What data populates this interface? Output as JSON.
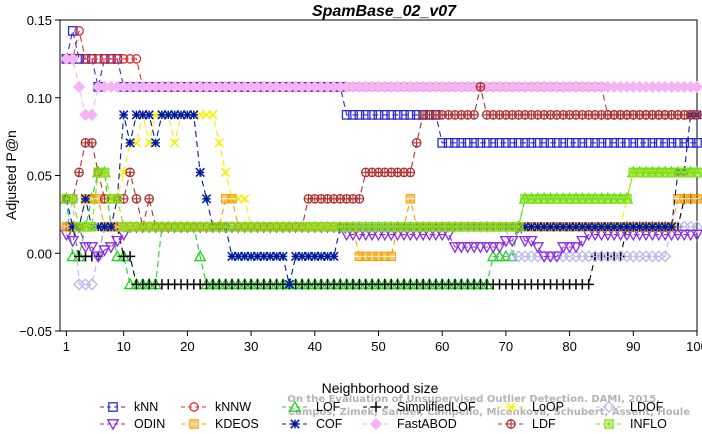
{
  "chart_data": {
    "type": "line",
    "title": "SpamBase_02_v07",
    "xlabel": "Neighborhood size",
    "ylabel": "Adjusted P@n",
    "xlim": [
      0,
      100
    ],
    "ylim": [
      -0.05,
      0.15
    ],
    "x_ticks": [
      "1",
      "10",
      "20",
      "30",
      "40",
      "50",
      "60",
      "70",
      "80",
      "90",
      "100"
    ],
    "y_ticks": [
      "−0.05",
      "0.00",
      "0.05",
      "0.10",
      "0.15"
    ],
    "grid": false,
    "legend_position": "bottom",
    "watermark": [
      "Campos, Zimek, Sander, Campello, Micenkova, Schubert, Assent, Houle",
      "On the Evaluation of Unsupervised Outlier Detection. DAMI, 2015."
    ],
    "series": [
      {
        "name": "kNN",
        "color": "#2b2bd4",
        "marker": "square",
        "dash": "6,4",
        "points": [
          [
            1,
            0.125
          ],
          [
            2,
            0.143
          ],
          [
            3,
            0.125
          ],
          [
            5,
            0.125
          ],
          [
            6,
            0.107
          ],
          [
            7,
            0.125
          ],
          [
            9,
            0.125
          ],
          [
            10,
            0.107
          ],
          [
            44,
            0.107
          ],
          [
            45,
            0.089
          ],
          [
            59,
            0.089
          ],
          [
            60,
            0.071
          ],
          [
            100,
            0.071
          ]
        ]
      },
      {
        "name": "kNNW",
        "color": "#e23030",
        "marker": "circle",
        "dash": "6,4",
        "points": [
          [
            1,
            0.125
          ],
          [
            2,
            0.125
          ],
          [
            3,
            0.143
          ],
          [
            4,
            0.125
          ],
          [
            11,
            0.125
          ],
          [
            12,
            0.125
          ],
          [
            13,
            0.107
          ],
          [
            85,
            0.107
          ],
          [
            86,
            0.089
          ],
          [
            100,
            0.089
          ]
        ]
      },
      {
        "name": "LOF",
        "color": "#1fd41f",
        "marker": "triangle",
        "dash": "6,4",
        "points": [
          [
            1,
            0.035
          ],
          [
            2,
            -0.002
          ],
          [
            3,
            -0.002
          ],
          [
            4,
            0.017
          ],
          [
            5,
            0.035
          ],
          [
            6,
            0.052
          ],
          [
            7,
            0.052
          ],
          [
            8,
            0.017
          ],
          [
            9,
            -0.002
          ],
          [
            10,
            -0.002
          ],
          [
            11,
            -0.02
          ],
          [
            12,
            -0.02
          ],
          [
            15,
            -0.02
          ],
          [
            16,
            0.017
          ],
          [
            19,
            0.017
          ],
          [
            20,
            0.017
          ],
          [
            21,
            0.017
          ],
          [
            22,
            -0.002
          ],
          [
            23,
            -0.02
          ],
          [
            67,
            -0.02
          ],
          [
            68,
            -0.002
          ],
          [
            69,
            -0.002
          ],
          [
            72,
            0.017
          ],
          [
            73,
            0.035
          ],
          [
            89,
            0.035
          ],
          [
            90,
            0.052
          ],
          [
            100,
            0.052
          ]
        ]
      },
      {
        "name": "SimplifiedLOF",
        "color": "#000000",
        "marker": "plus",
        "dash": "6,4",
        "points": [
          [
            1,
            0.017
          ],
          [
            2,
            0.017
          ],
          [
            3,
            -0.002
          ],
          [
            4,
            -0.002
          ],
          [
            5,
            -0.002
          ],
          [
            6,
            -0.002
          ],
          [
            7,
            0.017
          ],
          [
            9,
            0.017
          ],
          [
            10,
            -0.002
          ],
          [
            11,
            -0.002
          ],
          [
            12,
            -0.02
          ],
          [
            83,
            -0.02
          ],
          [
            84,
            -0.002
          ],
          [
            88,
            -0.002
          ],
          [
            89,
            0.017
          ],
          [
            97,
            0.017
          ],
          [
            98,
            0.035
          ],
          [
            100,
            0.035
          ]
        ]
      },
      {
        "name": "LoOP",
        "color": "#f2f200",
        "marker": "x",
        "dash": "6,4",
        "points": [
          [
            1,
            0.035
          ],
          [
            2,
            0.035
          ],
          [
            3,
            0.017
          ],
          [
            5,
            0.017
          ],
          [
            6,
            0.052
          ],
          [
            7,
            0.052
          ],
          [
            8,
            0.035
          ],
          [
            10,
            0.052
          ],
          [
            11,
            0.071
          ],
          [
            12,
            0.071
          ],
          [
            13,
            0.089
          ],
          [
            14,
            0.071
          ],
          [
            15,
            0.089
          ],
          [
            17,
            0.089
          ],
          [
            18,
            0.071
          ],
          [
            19,
            0.089
          ],
          [
            24,
            0.089
          ],
          [
            25,
            0.071
          ],
          [
            26,
            0.052
          ],
          [
            27,
            0.035
          ],
          [
            29,
            0.035
          ],
          [
            30,
            0.017
          ],
          [
            88,
            0.017
          ],
          [
            89,
            0.035
          ],
          [
            90,
            0.052
          ],
          [
            100,
            0.052
          ]
        ]
      },
      {
        "name": "LDOF",
        "color": "#b8b8ef",
        "marker": "diamond",
        "dash": "6,4",
        "points": [
          [
            1,
            0.017
          ],
          [
            2,
            0.035
          ],
          [
            3,
            -0.02
          ],
          [
            4,
            -0.02
          ],
          [
            5,
            -0.02
          ],
          [
            6,
            -0.002
          ],
          [
            7,
            0.017
          ],
          [
            44,
            0.017
          ],
          [
            45,
            0.017
          ],
          [
            70,
            0.017
          ],
          [
            71,
            -0.002
          ],
          [
            88,
            -0.002
          ],
          [
            89,
            -0.002
          ],
          [
            95,
            -0.002
          ],
          [
            96,
            0.017
          ],
          [
            100,
            0.017
          ]
        ]
      },
      {
        "name": "ODIN",
        "color": "#8a2be2",
        "marker": "triangle-down",
        "dash": "6,4",
        "points": [
          [
            1,
            0.012
          ],
          [
            2,
            0.008
          ],
          [
            3,
            0.017
          ],
          [
            4,
            0.004
          ],
          [
            5,
            0.004
          ],
          [
            6,
            -0.002
          ],
          [
            7,
            0.002
          ],
          [
            8,
            0.004
          ],
          [
            9,
            0.008
          ],
          [
            10,
            0.012
          ],
          [
            11,
            0.017
          ],
          [
            44,
            0.017
          ],
          [
            45,
            0.012
          ],
          [
            57,
            0.012
          ],
          [
            60,
            0.012
          ],
          [
            62,
            0.004
          ],
          [
            66,
            0.004
          ],
          [
            70,
            0.008
          ],
          [
            72,
            0.017
          ],
          [
            73,
            0.008
          ],
          [
            75,
            0.004
          ],
          [
            76,
            -0.002
          ],
          [
            78,
            -0.002
          ],
          [
            79,
            0.004
          ],
          [
            82,
            0.008
          ],
          [
            83,
            0.012
          ],
          [
            96,
            0.012
          ],
          [
            98,
            0.012
          ],
          [
            100,
            0.012
          ]
        ]
      },
      {
        "name": "KDEOS",
        "color": "#f4a000",
        "marker": "square-filled",
        "dash": "6,4",
        "points": [
          [
            1,
            0.017
          ],
          [
            2,
            0.017
          ],
          [
            3,
            0.017
          ],
          [
            4,
            0.035
          ],
          [
            5,
            0.035
          ],
          [
            6,
            0.035
          ],
          [
            7,
            0.017
          ],
          [
            25,
            0.017
          ],
          [
            26,
            0.035
          ],
          [
            27,
            0.035
          ],
          [
            28,
            0.017
          ],
          [
            46,
            0.017
          ],
          [
            47,
            -0.002
          ],
          [
            52,
            -0.002
          ],
          [
            53,
            0.017
          ],
          [
            55,
            0.035
          ],
          [
            56,
            0.017
          ],
          [
            87,
            0.017
          ],
          [
            88,
            0.017
          ],
          [
            96,
            0.017
          ],
          [
            97,
            0.035
          ],
          [
            100,
            0.035
          ]
        ]
      },
      {
        "name": "COF",
        "color": "#001a9e",
        "marker": "star",
        "dash": "6,4",
        "points": [
          [
            1,
            0.035
          ],
          [
            2,
            0.017
          ],
          [
            3,
            0.017
          ],
          [
            4,
            0.035
          ],
          [
            5,
            0.017
          ],
          [
            6,
            0.017
          ],
          [
            7,
            0.017
          ],
          [
            8,
            0.017
          ],
          [
            9,
            0.035
          ],
          [
            10,
            0.089
          ],
          [
            11,
            0.071
          ],
          [
            12,
            0.089
          ],
          [
            14,
            0.089
          ],
          [
            15,
            0.071
          ],
          [
            16,
            0.089
          ],
          [
            17,
            0.089
          ],
          [
            20,
            0.089
          ],
          [
            21,
            0.089
          ],
          [
            22,
            0.052
          ],
          [
            23,
            0.035
          ],
          [
            24,
            0.017
          ],
          [
            26,
            0.017
          ],
          [
            27,
            -0.002
          ],
          [
            35,
            -0.002
          ],
          [
            36,
            -0.02
          ],
          [
            37,
            -0.002
          ],
          [
            43,
            -0.002
          ],
          [
            44,
            0.017
          ],
          [
            96,
            0.017
          ],
          [
            97,
            0.052
          ],
          [
            98,
            0.052
          ],
          [
            99,
            0.089
          ],
          [
            100,
            0.089
          ]
        ]
      },
      {
        "name": "FastABOD",
        "color": "#f5b3f5",
        "marker": "diamond-filled",
        "dash": "6,4",
        "points": [
          [
            1,
            0.125
          ],
          [
            2,
            0.125
          ],
          [
            3,
            0.107
          ],
          [
            4,
            0.089
          ],
          [
            5,
            0.089
          ],
          [
            6,
            0.107
          ],
          [
            44,
            0.107
          ],
          [
            45,
            0.107
          ],
          [
            100,
            0.107
          ]
        ]
      },
      {
        "name": "LDF",
        "color": "#b03030",
        "marker": "circle-plus",
        "dash": "6,4",
        "points": [
          [
            1,
            0.035
          ],
          [
            2,
            0.035
          ],
          [
            3,
            0.052
          ],
          [
            4,
            0.071
          ],
          [
            5,
            0.071
          ],
          [
            6,
            0.052
          ],
          [
            7,
            0.035
          ],
          [
            10,
            0.035
          ],
          [
            11,
            0.052
          ],
          [
            12,
            0.035
          ],
          [
            13,
            0.017
          ],
          [
            14,
            0.035
          ],
          [
            15,
            0.017
          ],
          [
            16,
            0.017
          ],
          [
            38,
            0.017
          ],
          [
            39,
            0.035
          ],
          [
            40,
            0.035
          ],
          [
            47,
            0.035
          ],
          [
            48,
            0.052
          ],
          [
            49,
            0.052
          ],
          [
            55,
            0.052
          ],
          [
            56,
            0.071
          ],
          [
            57,
            0.089
          ],
          [
            65,
            0.089
          ],
          [
            66,
            0.107
          ],
          [
            67,
            0.089
          ],
          [
            100,
            0.089
          ]
        ]
      },
      {
        "name": "INFLO",
        "color": "#8ce01b",
        "marker": "star-box",
        "dash": "6,4",
        "points": [
          [
            1,
            0.035
          ],
          [
            2,
            0.035
          ],
          [
            3,
            0.017
          ],
          [
            5,
            0.017
          ],
          [
            6,
            0.052
          ],
          [
            7,
            0.052
          ],
          [
            8,
            0.035
          ],
          [
            10,
            0.017
          ],
          [
            19,
            0.017
          ],
          [
            20,
            0.017
          ],
          [
            21,
            0.017
          ],
          [
            44,
            0.017
          ],
          [
            72,
            0.017
          ],
          [
            73,
            0.035
          ],
          [
            89,
            0.035
          ],
          [
            90,
            0.052
          ],
          [
            100,
            0.052
          ]
        ]
      }
    ]
  }
}
